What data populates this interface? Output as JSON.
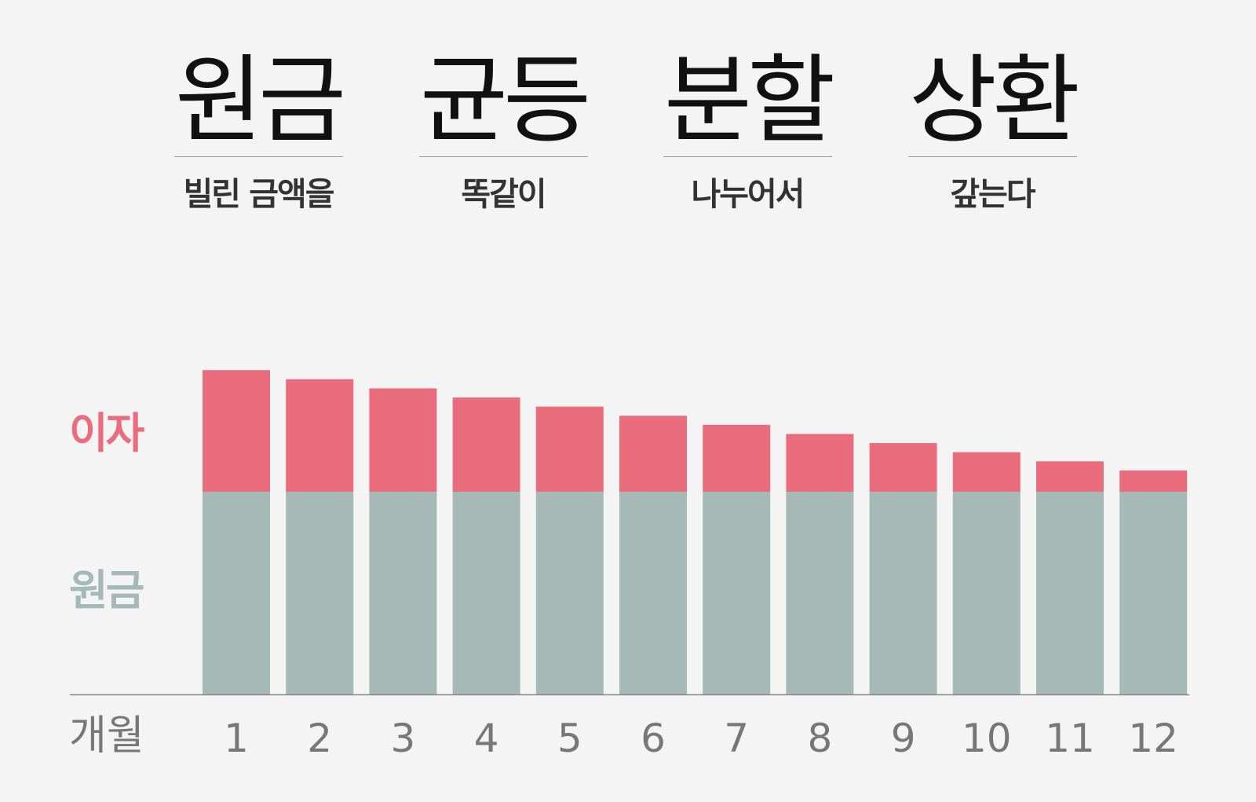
{
  "title": {
    "groups": [
      {
        "word": "원금",
        "sub": "빌린 금액을"
      },
      {
        "word": "균등",
        "sub": "똑같이"
      },
      {
        "word": "분할",
        "sub": "나누어서"
      },
      {
        "word": "상환",
        "sub": "갚는다"
      }
    ]
  },
  "legend": {
    "interest_label": "이자",
    "principal_label": "원금"
  },
  "colors": {
    "interest": "#e96d7d",
    "principal": "#a5b9b6",
    "axis": "#888888",
    "tick_text": "#777777",
    "background": "#f4f4f4"
  },
  "chart_data": {
    "type": "bar",
    "stacked": true,
    "xlabel": "개월",
    "categories": [
      "1",
      "2",
      "3",
      "4",
      "5",
      "6",
      "7",
      "8",
      "9",
      "10",
      "11",
      "12"
    ],
    "series": [
      {
        "name": "원금",
        "values": [
          1,
          1,
          1,
          1,
          1,
          1,
          1,
          1,
          1,
          1,
          1,
          1
        ]
      },
      {
        "name": "이자",
        "values": [
          0.6,
          0.555,
          0.51,
          0.465,
          0.42,
          0.375,
          0.33,
          0.285,
          0.24,
          0.195,
          0.15,
          0.105
        ]
      }
    ],
    "grid": false
  }
}
